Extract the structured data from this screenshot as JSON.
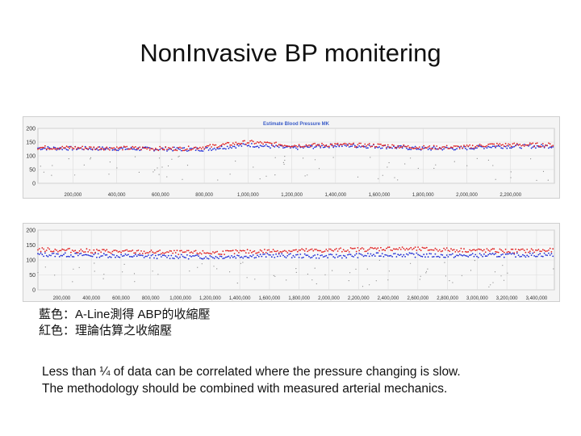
{
  "slide": {
    "title": "NonInvasive BP monitering"
  },
  "legend": {
    "blue": "藍色：A-Line測得 ABP的收縮壓",
    "red": "紅色：理論估算之收縮壓"
  },
  "notes": [
    "Less than ¼ of data can be correlated where the pressure changing is slow.",
    "The methodology should be combined with measured arterial mechanics."
  ],
  "colors": {
    "measured": "#1f2bd6",
    "estimated": "#e02020",
    "grid": "#dcdcdc"
  },
  "chart_data": [
    {
      "type": "scatter",
      "title": "Estimate Blood Pressure MK",
      "ylim": [
        0,
        200
      ],
      "yticks": [
        0,
        50,
        100,
        150,
        200
      ],
      "xlim": [
        40000,
        2400000
      ],
      "xticks": [
        200000,
        400000,
        600000,
        800000,
        1000000,
        1200000,
        1400000,
        1600000,
        1800000,
        2000000,
        2200000
      ],
      "xtick_labels": [
        "200,000",
        "400,000",
        "600,000",
        "800,000",
        "1,000,000",
        "1,200,000",
        "1,400,000",
        "1,600,000",
        "1,800,000",
        "2,000,000",
        "2,200,000"
      ],
      "grid": true,
      "series": [
        {
          "color": "blue",
          "x": [
            40000,
            400000,
            700000,
            800000,
            1000000,
            1200000,
            1400000,
            1600000,
            1800000,
            2000000,
            2100000,
            2400000
          ],
          "y": [
            128,
            126,
            124,
            124,
            140,
            128,
            138,
            134,
            126,
            128,
            134,
            135
          ]
        },
        {
          "color": "red",
          "x": [
            40000,
            400000,
            700000,
            800000,
            1000000,
            1200000,
            1400000,
            1600000,
            1800000,
            2000000,
            2100000,
            2400000
          ],
          "y": [
            130,
            128,
            126,
            132,
            150,
            138,
            140,
            138,
            130,
            132,
            140,
            140
          ]
        }
      ]
    },
    {
      "type": "scatter",
      "ylim": [
        0,
        200
      ],
      "yticks": [
        0,
        50,
        100,
        150,
        200
      ],
      "xlim": [
        40000,
        3520000
      ],
      "xticks": [
        200000,
        400000,
        600000,
        800000,
        1000000,
        1200000,
        1400000,
        1600000,
        1800000,
        2000000,
        2200000,
        2400000,
        2600000,
        2800000,
        3000000,
        3200000,
        3400000
      ],
      "xtick_labels": [
        "200,000",
        "400,000",
        "600,000",
        "800,000",
        "1,000,000",
        "1,200,000",
        "1,400,000",
        "1,600,000",
        "1,800,000",
        "2,000,000",
        "2,200,000",
        "2,400,000",
        "2,600,000",
        "2,800,000",
        "3,000,000",
        "3,200,000",
        "3,400,000"
      ],
      "grid": true,
      "series": [
        {
          "color": "blue",
          "x": [
            40000,
            400000,
            800000,
            1200000,
            1600000,
            2000000,
            2400000,
            2800000,
            3200000,
            3520000
          ],
          "y": [
            118,
            116,
            112,
            110,
            115,
            112,
            118,
            114,
            116,
            118
          ]
        },
        {
          "color": "red",
          "x": [
            40000,
            400000,
            800000,
            1200000,
            1600000,
            2000000,
            2400000,
            2800000,
            3200000,
            3520000
          ],
          "y": [
            135,
            130,
            126,
            124,
            130,
            132,
            138,
            134,
            130,
            132
          ]
        }
      ]
    }
  ]
}
